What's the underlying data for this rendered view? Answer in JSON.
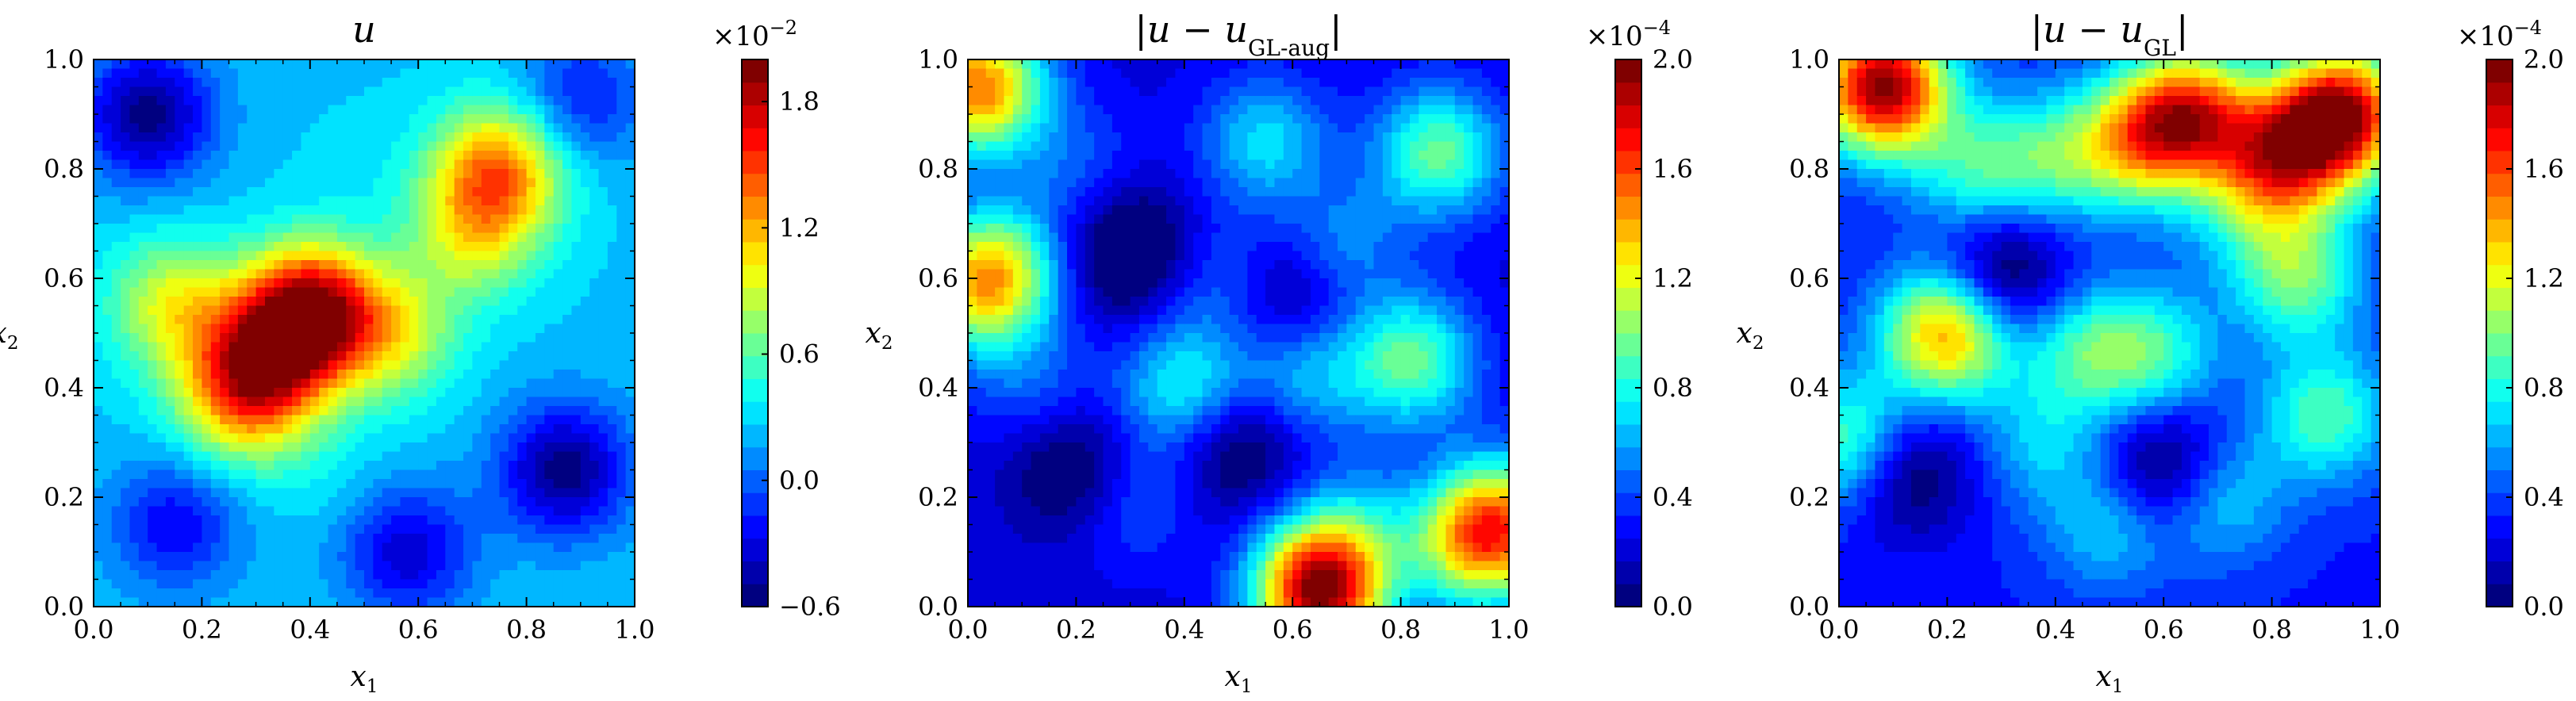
{
  "chart_data": [
    {
      "type": "heatmap",
      "title": "u",
      "title_parts": [
        {
          "t": "u",
          "italic": true,
          "sub": false
        }
      ],
      "xlabel": "x",
      "xlabel_sub": "1",
      "ylabel": "x",
      "ylabel_sub": "2",
      "x_ticks": [
        "0.0",
        "0.2",
        "0.4",
        "0.6",
        "0.8",
        "1.0"
      ],
      "y_ticks": [
        "0.0",
        "0.2",
        "0.4",
        "0.6",
        "0.8",
        "1.0"
      ],
      "xlim": [
        0,
        1
      ],
      "ylim": [
        0,
        1
      ],
      "colormap": "jet",
      "colorbar": {
        "multiplier": "×10",
        "exponent": "−2",
        "range": [
          -0.6,
          2.0
        ],
        "ticks": [
          {
            "value": -0.6,
            "label": "−0.6"
          },
          {
            "value": 0.0,
            "label": "0.0"
          },
          {
            "value": 0.6,
            "label": "0.6"
          },
          {
            "value": 1.2,
            "label": "1.2"
          },
          {
            "value": 1.8,
            "label": "1.8"
          }
        ]
      },
      "base_level": 0.25,
      "features": [
        {
          "x": 0.4,
          "y": 0.54,
          "value": 1.85
        },
        {
          "x": 0.32,
          "y": 0.45,
          "value": 1.25
        },
        {
          "x": 0.27,
          "y": 0.38,
          "value": 1.05
        },
        {
          "x": 0.15,
          "y": 0.55,
          "value": 0.95
        },
        {
          "x": 0.55,
          "y": 0.5,
          "value": 0.9
        },
        {
          "x": 0.75,
          "y": 0.8,
          "value": 1.3
        },
        {
          "x": 0.7,
          "y": 0.68,
          "value": 0.85
        },
        {
          "x": 0.42,
          "y": 0.26,
          "value": 0.35
        },
        {
          "x": 0.5,
          "y": 0.8,
          "value": 0.3
        },
        {
          "x": 0.1,
          "y": 0.9,
          "value": -0.55
        },
        {
          "x": 0.87,
          "y": 0.25,
          "value": -0.55
        },
        {
          "x": 0.58,
          "y": 0.1,
          "value": -0.35
        },
        {
          "x": 0.15,
          "y": 0.15,
          "value": -0.25
        },
        {
          "x": 0.9,
          "y": 0.93,
          "value": -0.2
        }
      ]
    },
    {
      "type": "heatmap",
      "title": "|u − u_GL-aug|",
      "title_parts": [
        {
          "t": "|",
          "italic": false,
          "sub": false
        },
        {
          "t": "u",
          "italic": true,
          "sub": false
        },
        {
          "t": " − ",
          "italic": false,
          "sub": false
        },
        {
          "t": "u",
          "italic": true,
          "sub": false
        },
        {
          "t": "GL-aug",
          "italic": false,
          "sub": true
        },
        {
          "t": "|",
          "italic": false,
          "sub": false
        }
      ],
      "xlabel": "x",
      "xlabel_sub": "1",
      "ylabel": "x",
      "ylabel_sub": "2",
      "x_ticks": [
        "0.0",
        "0.2",
        "0.4",
        "0.6",
        "0.8",
        "1.0"
      ],
      "y_ticks": [
        "0.0",
        "0.2",
        "0.4",
        "0.6",
        "0.8",
        "1.0"
      ],
      "xlim": [
        0,
        1
      ],
      "ylim": [
        0,
        1
      ],
      "colormap": "jet",
      "colorbar": {
        "multiplier": "×10",
        "exponent": "−4",
        "range": [
          0.0,
          2.0
        ],
        "ticks": [
          {
            "value": 0.0,
            "label": "0.0"
          },
          {
            "value": 0.4,
            "label": "0.4"
          },
          {
            "value": 0.8,
            "label": "0.8"
          },
          {
            "value": 1.2,
            "label": "1.2"
          },
          {
            "value": 1.6,
            "label": "1.6"
          },
          {
            "value": 2.0,
            "label": "2.0"
          }
        ]
      },
      "base_level": 0.22,
      "features": [
        {
          "x": 0.65,
          "y": 0.03,
          "value": 1.95
        },
        {
          "x": 0.02,
          "y": 0.95,
          "value": 1.5
        },
        {
          "x": 0.98,
          "y": 0.15,
          "value": 1.4
        },
        {
          "x": 0.02,
          "y": 0.58,
          "value": 1.0
        },
        {
          "x": 0.82,
          "y": 0.45,
          "value": 0.95
        },
        {
          "x": 0.87,
          "y": 0.83,
          "value": 0.95
        },
        {
          "x": 0.4,
          "y": 0.4,
          "value": 0.8
        },
        {
          "x": 0.55,
          "y": 0.85,
          "value": 0.7
        },
        {
          "x": 0.06,
          "y": 0.62,
          "value": 0.75
        },
        {
          "x": 0.62,
          "y": 0.42,
          "value": 0.65
        },
        {
          "x": 0.92,
          "y": 0.1,
          "value": 0.7
        },
        {
          "x": 0.3,
          "y": 0.2,
          "value": 0.5
        },
        {
          "x": 0.12,
          "y": 0.4,
          "value": 0.45
        },
        {
          "x": 0.68,
          "y": 0.65,
          "value": 0.6
        },
        {
          "x": 0.2,
          "y": 0.8,
          "value": 0.45
        },
        {
          "x": 0.47,
          "y": 0.6,
          "value": 0.5
        },
        {
          "x": 0.72,
          "y": 0.15,
          "value": 0.55
        },
        {
          "x": 0.3,
          "y": 0.65,
          "value": -0.2
        },
        {
          "x": 0.5,
          "y": 0.3,
          "value": -0.15
        },
        {
          "x": 0.2,
          "y": 0.25,
          "value": -0.15
        },
        {
          "x": 0.6,
          "y": 0.58,
          "value": -0.15
        }
      ]
    },
    {
      "type": "heatmap",
      "title": "|u − u_GL|",
      "title_parts": [
        {
          "t": "|",
          "italic": false,
          "sub": false
        },
        {
          "t": "u",
          "italic": true,
          "sub": false
        },
        {
          "t": " − ",
          "italic": false,
          "sub": false
        },
        {
          "t": "u",
          "italic": true,
          "sub": false
        },
        {
          "t": "GL",
          "italic": false,
          "sub": true
        },
        {
          "t": "|",
          "italic": false,
          "sub": false
        }
      ],
      "xlabel": "x",
      "xlabel_sub": "1",
      "ylabel": "x",
      "ylabel_sub": "2",
      "x_ticks": [
        "0.0",
        "0.2",
        "0.4",
        "0.6",
        "0.8",
        "1.0"
      ],
      "y_ticks": [
        "0.0",
        "0.2",
        "0.4",
        "0.6",
        "0.8",
        "1.0"
      ],
      "xlim": [
        0,
        1
      ],
      "ylim": [
        0,
        1
      ],
      "colormap": "jet",
      "colorbar": {
        "multiplier": "×10",
        "exponent": "−4",
        "range": [
          0.0,
          2.0
        ],
        "ticks": [
          {
            "value": 0.0,
            "label": "0.0"
          },
          {
            "value": 0.4,
            "label": "0.4"
          },
          {
            "value": 0.8,
            "label": "0.8"
          },
          {
            "value": 1.2,
            "label": "1.2"
          },
          {
            "value": 1.6,
            "label": "1.6"
          },
          {
            "value": 2.0,
            "label": "2.0"
          }
        ]
      },
      "base_level": 0.32,
      "features": [
        {
          "x": 0.08,
          "y": 0.95,
          "value": 1.95
        },
        {
          "x": 0.93,
          "y": 0.9,
          "value": 1.85
        },
        {
          "x": 0.65,
          "y": 0.9,
          "value": 1.5
        },
        {
          "x": 0.2,
          "y": 0.5,
          "value": 1.45
        },
        {
          "x": 0.82,
          "y": 0.82,
          "value": 1.4
        },
        {
          "x": 0.55,
          "y": 0.85,
          "value": 1.1
        },
        {
          "x": 0.85,
          "y": 0.6,
          "value": 0.95
        },
        {
          "x": 0.9,
          "y": 0.35,
          "value": 0.9
        },
        {
          "x": 0.4,
          "y": 0.82,
          "value": 0.8
        },
        {
          "x": 0.25,
          "y": 0.8,
          "value": 0.8
        },
        {
          "x": 0.58,
          "y": 0.46,
          "value": 0.85
        },
        {
          "x": 0.45,
          "y": 0.47,
          "value": 0.8
        },
        {
          "x": 0.7,
          "y": 0.2,
          "value": 0.75
        },
        {
          "x": 0.02,
          "y": 0.3,
          "value": 1.0
        },
        {
          "x": 0.5,
          "y": 0.15,
          "value": 0.7
        },
        {
          "x": 0.38,
          "y": 0.3,
          "value": 0.65
        },
        {
          "x": 0.75,
          "y": 0.72,
          "value": 0.6
        },
        {
          "x": 0.3,
          "y": 0.6,
          "value": -0.2
        },
        {
          "x": 0.6,
          "y": 0.25,
          "value": -0.2
        },
        {
          "x": 0.12,
          "y": 0.25,
          "value": -0.15
        }
      ]
    }
  ]
}
